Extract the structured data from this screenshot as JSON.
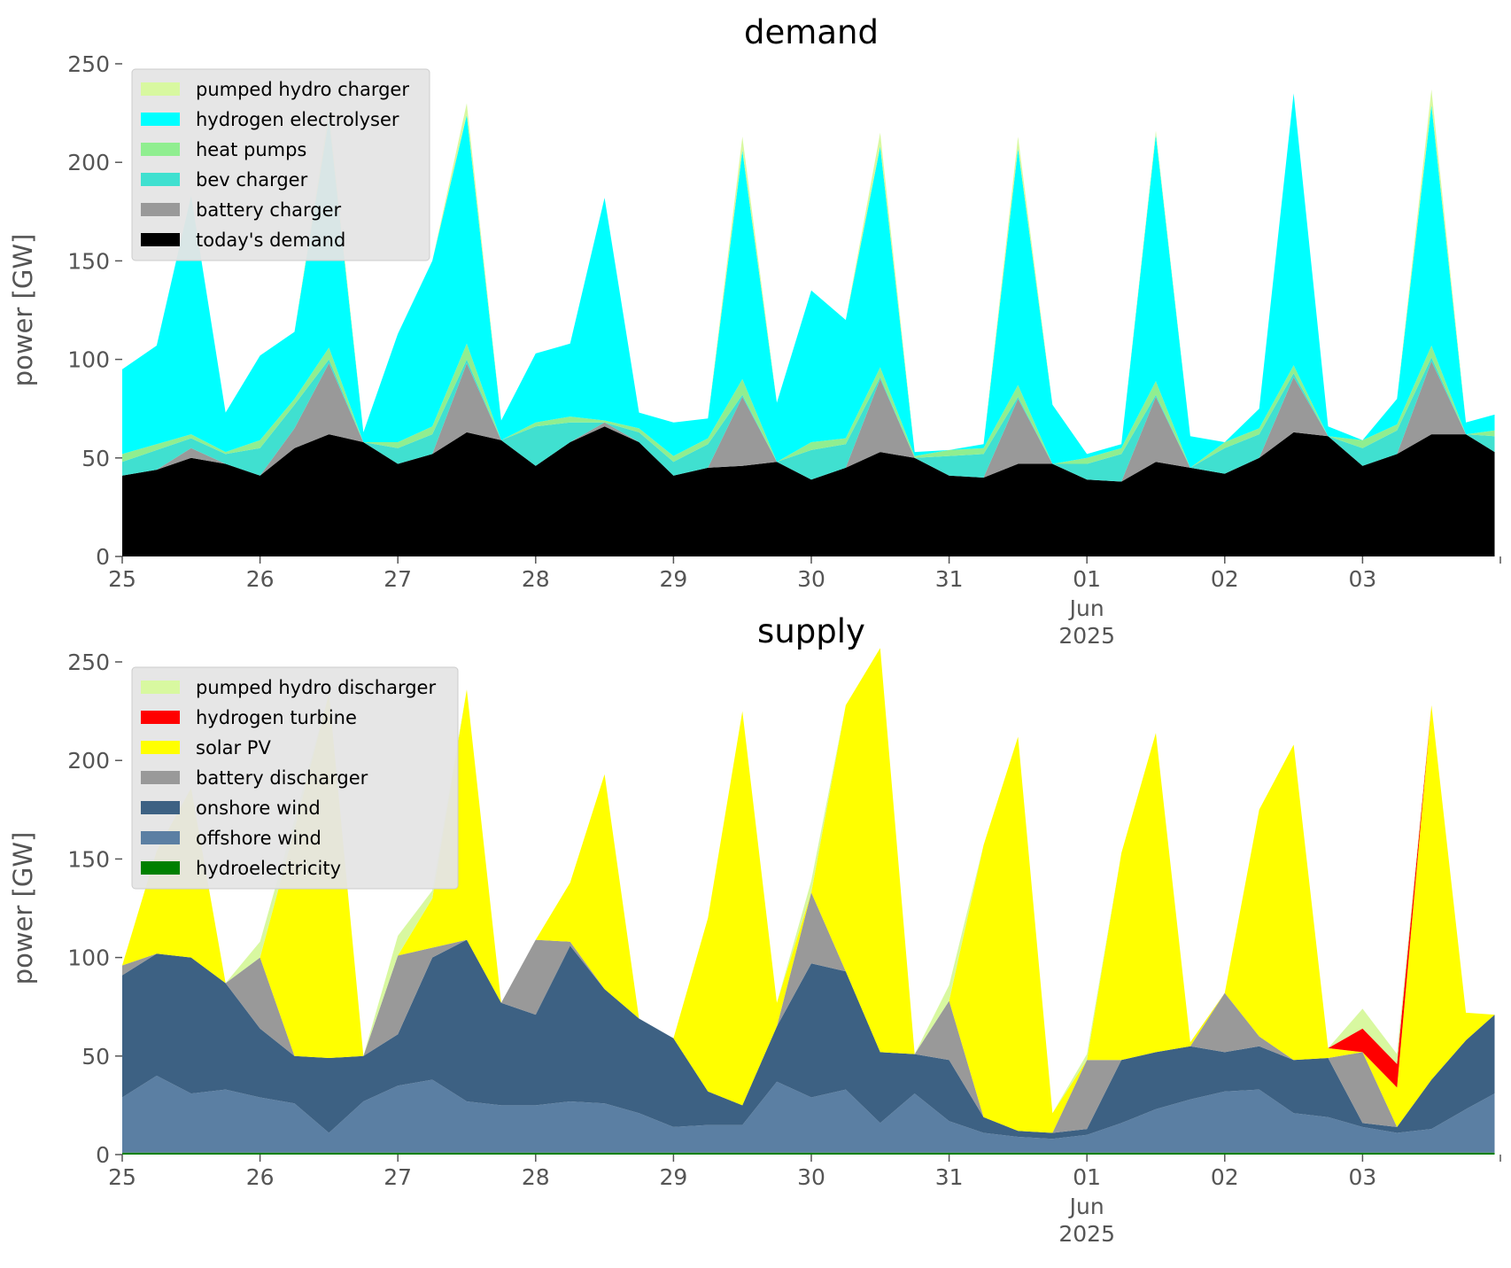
{
  "chart_data": [
    {
      "type": "area",
      "stacked": true,
      "title": "demand",
      "ylabel": "power [GW]",
      "xlabel": "",
      "ylim": [
        0,
        250
      ],
      "yticks": [
        "0",
        "50",
        "100",
        "150",
        "200",
        "250"
      ],
      "xlim": [
        "2025-05-25",
        "2025-06-04"
      ],
      "xticks": [
        {
          "date": "2025-05-25",
          "label": "25"
        },
        {
          "date": "2025-05-26",
          "label": "26"
        },
        {
          "date": "2025-05-27",
          "label": "27"
        },
        {
          "date": "2025-05-28",
          "label": "28"
        },
        {
          "date": "2025-05-29",
          "label": "29"
        },
        {
          "date": "2025-05-30",
          "label": "30"
        },
        {
          "date": "2025-05-31",
          "label": "31"
        },
        {
          "date": "2025-06-01",
          "label": "01",
          "sublabels": [
            "Jun",
            "2025"
          ]
        },
        {
          "date": "2025-06-02",
          "label": "02"
        },
        {
          "date": "2025-06-03",
          "label": "03"
        }
      ],
      "grid": false,
      "legend_position": "top-left",
      "x": [
        "2025-05-25 00:00",
        "2025-05-25 06:00",
        "2025-05-25 12:00",
        "2025-05-25 18:00",
        "2025-05-26 00:00",
        "2025-05-26 06:00",
        "2025-05-26 12:00",
        "2025-05-26 18:00",
        "2025-05-27 00:00",
        "2025-05-27 06:00",
        "2025-05-27 12:00",
        "2025-05-27 18:00",
        "2025-05-28 00:00",
        "2025-05-28 06:00",
        "2025-05-28 12:00",
        "2025-05-28 18:00",
        "2025-05-29 00:00",
        "2025-05-29 06:00",
        "2025-05-29 12:00",
        "2025-05-29 18:00",
        "2025-05-30 00:00",
        "2025-05-30 06:00",
        "2025-05-30 12:00",
        "2025-05-30 18:00",
        "2025-05-31 00:00",
        "2025-05-31 06:00",
        "2025-05-31 12:00",
        "2025-05-31 18:00",
        "2025-06-01 00:00",
        "2025-06-01 06:00",
        "2025-06-01 12:00",
        "2025-06-01 18:00",
        "2025-06-02 00:00",
        "2025-06-02 06:00",
        "2025-06-02 12:00",
        "2025-06-02 18:00",
        "2025-06-03 00:00",
        "2025-06-03 06:00",
        "2025-06-03 12:00",
        "2025-06-03 18:00",
        "2025-06-03 23:00"
      ],
      "series": [
        {
          "name": "today's demand",
          "color": "#000000",
          "values": [
            41,
            44,
            50,
            47,
            41,
            55,
            62,
            58,
            47,
            52,
            63,
            59,
            46,
            58,
            66,
            58,
            41,
            45,
            46,
            48,
            39,
            45,
            53,
            50,
            41,
            40,
            47,
            47,
            39,
            38,
            48,
            45,
            42,
            50,
            63,
            61,
            46,
            52,
            62,
            62,
            53
          ]
        },
        {
          "name": "battery charger",
          "color": "#999999",
          "values": [
            0,
            0,
            5,
            0,
            0,
            10,
            36,
            0,
            0,
            0,
            35,
            0,
            0,
            0,
            2,
            0,
            0,
            0,
            35,
            0,
            0,
            0,
            37,
            0,
            0,
            0,
            33,
            0,
            0,
            0,
            33,
            0,
            0,
            0,
            28,
            0,
            0,
            0,
            37,
            0,
            0
          ]
        },
        {
          "name": "bev charger",
          "color": "#40e0d0",
          "values": [
            7,
            10,
            5,
            5,
            14,
            12,
            2,
            0,
            8,
            10,
            2,
            0,
            20,
            10,
            0,
            5,
            7,
            12,
            1,
            0,
            15,
            12,
            1,
            0,
            10,
            12,
            1,
            0,
            8,
            14,
            1,
            0,
            13,
            12,
            2,
            0,
            9,
            12,
            2,
            0,
            8
          ]
        },
        {
          "name": "heat pumps",
          "color": "#90ee90",
          "values": [
            4,
            3,
            2,
            1,
            4,
            3,
            6,
            0,
            3,
            4,
            8,
            0,
            2,
            3,
            1,
            2,
            3,
            3,
            8,
            0,
            4,
            3,
            5,
            1,
            3,
            3,
            6,
            0,
            3,
            3,
            7,
            0,
            3,
            3,
            4,
            0,
            4,
            3,
            6,
            0,
            3
          ]
        },
        {
          "name": "hydrogen electrolyser",
          "color": "#00ffff",
          "values": [
            43,
            50,
            121,
            20,
            43,
            34,
            116,
            5,
            55,
            84,
            116,
            10,
            35,
            37,
            113,
            8,
            17,
            10,
            116,
            30,
            77,
            60,
            112,
            2,
            0,
            2,
            120,
            30,
            2,
            2,
            125,
            16,
            0,
            10,
            138,
            5,
            0,
            13,
            122,
            6,
            8
          ]
        },
        {
          "name": "pumped hydro charger",
          "color": "#d8f8a0",
          "values": [
            0,
            0,
            0,
            0,
            0,
            0,
            4,
            0,
            0,
            0,
            6,
            0,
            0,
            0,
            0,
            0,
            0,
            0,
            7,
            0,
            0,
            0,
            7,
            0,
            0,
            0,
            6,
            0,
            0,
            0,
            2,
            0,
            0,
            0,
            0,
            0,
            0,
            0,
            8,
            0,
            0
          ]
        }
      ]
    },
    {
      "type": "area",
      "stacked": true,
      "title": "supply",
      "ylabel": "power [GW]",
      "xlabel": "",
      "ylim": [
        0,
        250
      ],
      "yticks": [
        "0",
        "50",
        "100",
        "150",
        "200",
        "250"
      ],
      "xlim": [
        "2025-05-25",
        "2025-06-04"
      ],
      "xticks": [
        {
          "date": "2025-05-25",
          "label": "25"
        },
        {
          "date": "2025-05-26",
          "label": "26"
        },
        {
          "date": "2025-05-27",
          "label": "27"
        },
        {
          "date": "2025-05-28",
          "label": "28"
        },
        {
          "date": "2025-05-29",
          "label": "29"
        },
        {
          "date": "2025-05-30",
          "label": "30"
        },
        {
          "date": "2025-05-31",
          "label": "31"
        },
        {
          "date": "2025-06-01",
          "label": "01",
          "sublabels": [
            "Jun",
            "2025"
          ]
        },
        {
          "date": "2025-06-02",
          "label": "02"
        },
        {
          "date": "2025-06-03",
          "label": "03"
        }
      ],
      "grid": false,
      "legend_position": "top-left",
      "x": [
        "2025-05-25 00:00",
        "2025-05-25 06:00",
        "2025-05-25 12:00",
        "2025-05-25 18:00",
        "2025-05-26 00:00",
        "2025-05-26 06:00",
        "2025-05-26 12:00",
        "2025-05-26 18:00",
        "2025-05-27 00:00",
        "2025-05-27 06:00",
        "2025-05-27 12:00",
        "2025-05-27 18:00",
        "2025-05-28 00:00",
        "2025-05-28 06:00",
        "2025-05-28 12:00",
        "2025-05-28 18:00",
        "2025-05-29 00:00",
        "2025-05-29 06:00",
        "2025-05-29 12:00",
        "2025-05-29 18:00",
        "2025-05-30 00:00",
        "2025-05-30 06:00",
        "2025-05-30 12:00",
        "2025-05-30 18:00",
        "2025-05-31 00:00",
        "2025-05-31 06:00",
        "2025-05-31 12:00",
        "2025-05-31 18:00",
        "2025-06-01 00:00",
        "2025-06-01 06:00",
        "2025-06-01 12:00",
        "2025-06-01 18:00",
        "2025-06-02 00:00",
        "2025-06-02 06:00",
        "2025-06-02 12:00",
        "2025-06-02 18:00",
        "2025-06-03 00:00",
        "2025-06-03 06:00",
        "2025-06-03 12:00",
        "2025-06-03 18:00",
        "2025-06-03 23:00"
      ],
      "series": [
        {
          "name": "hydroelectricity",
          "color": "#008000",
          "values": [
            1,
            1,
            1,
            1,
            1,
            1,
            1,
            1,
            1,
            1,
            1,
            1,
            1,
            1,
            1,
            1,
            1,
            1,
            1,
            1,
            1,
            1,
            1,
            1,
            1,
            1,
            1,
            1,
            1,
            1,
            1,
            1,
            1,
            1,
            1,
            1,
            1,
            1,
            1,
            1,
            1
          ]
        },
        {
          "name": "offshore wind",
          "color": "#5b7fa3",
          "values": [
            28,
            39,
            30,
            32,
            28,
            25,
            10,
            26,
            34,
            37,
            26,
            24,
            24,
            26,
            25,
            20,
            13,
            14,
            14,
            36,
            28,
            32,
            15,
            30,
            16,
            10,
            8,
            7,
            9,
            15,
            22,
            27,
            31,
            32,
            20,
            18,
            13,
            10,
            12,
            22,
            30
          ]
        },
        {
          "name": "onshore wind",
          "color": "#3d6183",
          "values": [
            62,
            62,
            69,
            54,
            35,
            24,
            38,
            23,
            26,
            62,
            82,
            52,
            46,
            79,
            58,
            48,
            45,
            17,
            10,
            28,
            68,
            60,
            36,
            20,
            31,
            8,
            3,
            3,
            3,
            32,
            29,
            27,
            20,
            22,
            27,
            30,
            2,
            3,
            25,
            35,
            40
          ]
        },
        {
          "name": "battery discharger",
          "color": "#999999",
          "values": [
            5,
            0,
            0,
            0,
            36,
            0,
            0,
            0,
            40,
            5,
            0,
            0,
            38,
            2,
            0,
            0,
            0,
            0,
            0,
            0,
            36,
            0,
            0,
            0,
            30,
            0,
            0,
            0,
            35,
            0,
            0,
            0,
            30,
            5,
            0,
            0,
            36,
            0,
            0,
            0,
            0
          ]
        },
        {
          "name": "solar PV",
          "color": "#ffff00",
          "values": [
            0,
            52,
            86,
            0,
            0,
            115,
            185,
            0,
            0,
            25,
            127,
            0,
            0,
            30,
            109,
            0,
            0,
            88,
            200,
            12,
            0,
            135,
            205,
            0,
            0,
            138,
            200,
            10,
            0,
            105,
            162,
            2,
            0,
            115,
            160,
            5,
            0,
            20,
            190,
            14,
            0
          ]
        },
        {
          "name": "hydrogen turbine",
          "color": "#ff0000",
          "values": [
            0,
            0,
            0,
            0,
            0,
            0,
            0,
            0,
            0,
            0,
            0,
            0,
            0,
            0,
            0,
            0,
            0,
            0,
            0,
            0,
            0,
            0,
            0,
            0,
            0,
            0,
            0,
            0,
            0,
            0,
            0,
            0,
            0,
            0,
            0,
            0,
            12,
            12,
            0,
            0,
            0
          ]
        },
        {
          "name": "pumped hydro discharger",
          "color": "#d8f8a0",
          "values": [
            0,
            0,
            0,
            0,
            8,
            5,
            0,
            0,
            10,
            4,
            0,
            0,
            0,
            0,
            0,
            0,
            0,
            0,
            0,
            0,
            6,
            0,
            0,
            0,
            8,
            0,
            0,
            0,
            3,
            0,
            0,
            0,
            0,
            0,
            0,
            0,
            10,
            5,
            0,
            0,
            0
          ]
        }
      ]
    }
  ]
}
